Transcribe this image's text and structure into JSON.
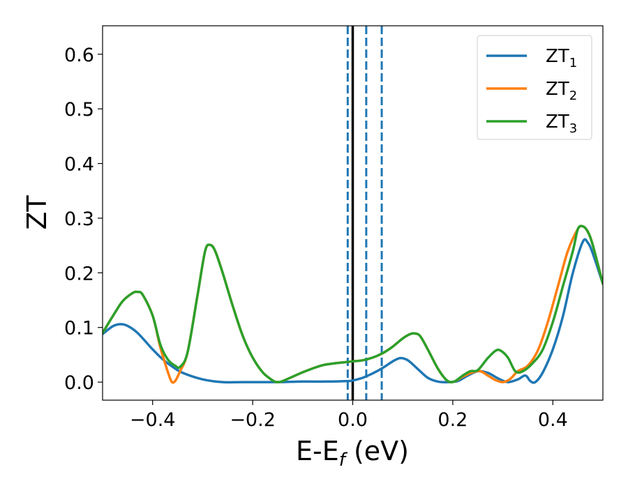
{
  "chart_data": {
    "type": "line",
    "xlabel_main": "E-E",
    "xlabel_sub": "f",
    "xlabel_unit": " (eV)",
    "ylabel": "ZT",
    "xlim": [
      -0.5,
      0.5
    ],
    "ylim": [
      -0.033,
      0.652
    ],
    "xticks": [
      -0.4,
      -0.2,
      0.0,
      0.2,
      0.4
    ],
    "xtick_labels": [
      "−0.4",
      "−0.2",
      "0.0",
      "0.2",
      "0.4"
    ],
    "yticks": [
      0.0,
      0.1,
      0.2,
      0.3,
      0.4,
      0.5,
      0.6
    ],
    "ytick_labels": [
      "0.0",
      "0.1",
      "0.2",
      "0.3",
      "0.4",
      "0.5",
      "0.6"
    ],
    "grid": false,
    "legend_position": "top-right",
    "vlines": [
      {
        "x": 0.0,
        "style": "solid",
        "color": "#000000"
      },
      {
        "x": -0.01,
        "style": "dashed",
        "color": "#1f77b4"
      },
      {
        "x": 0.027,
        "style": "dashed",
        "color": "#1f77b4"
      },
      {
        "x": 0.058,
        "style": "dashed",
        "color": "#1f77b4"
      }
    ],
    "series": [
      {
        "name": "ZT",
        "name_sub": "1",
        "color": "#1f77b4",
        "x": [
          -0.5,
          -0.48,
          -0.465,
          -0.45,
          -0.43,
          -0.4,
          -0.38,
          -0.36,
          -0.34,
          -0.3,
          -0.26,
          -0.22,
          -0.15,
          -0.1,
          -0.05,
          -0.01,
          0.0,
          0.02,
          0.04,
          0.06,
          0.08,
          0.095,
          0.11,
          0.13,
          0.15,
          0.17,
          0.19,
          0.21,
          0.23,
          0.25,
          0.27,
          0.29,
          0.31,
          0.33,
          0.345,
          0.355,
          0.365,
          0.38,
          0.4,
          0.42,
          0.44,
          0.46,
          0.47,
          0.48,
          0.5
        ],
        "y": [
          0.088,
          0.102,
          0.106,
          0.103,
          0.09,
          0.06,
          0.042,
          0.028,
          0.017,
          0.005,
          0.0,
          0.0,
          0.0,
          0.001,
          0.001,
          0.002,
          0.003,
          0.008,
          0.016,
          0.026,
          0.038,
          0.044,
          0.04,
          0.024,
          0.008,
          0.001,
          0.0,
          0.002,
          0.012,
          0.02,
          0.017,
          0.007,
          0.0,
          0.005,
          0.012,
          0.002,
          0.0,
          0.018,
          0.06,
          0.12,
          0.2,
          0.257,
          0.255,
          0.235,
          0.18
        ]
      },
      {
        "name": "ZT",
        "name_sub": "2",
        "color": "#ff7f0e",
        "x": [
          -0.5,
          -0.48,
          -0.46,
          -0.44,
          -0.43,
          -0.42,
          -0.4,
          -0.385,
          -0.37,
          -0.362,
          -0.355,
          -0.345,
          -0.33,
          -0.31,
          -0.295,
          -0.285,
          -0.275,
          -0.26,
          -0.24,
          -0.22,
          -0.2,
          -0.18,
          -0.16,
          -0.15,
          -0.14,
          -0.12,
          -0.1,
          -0.08,
          -0.06,
          -0.04,
          -0.02,
          0.0,
          0.02,
          0.04,
          0.06,
          0.08,
          0.1,
          0.115,
          0.125,
          0.135,
          0.15,
          0.17,
          0.185,
          0.195,
          0.205,
          0.22,
          0.24,
          0.255,
          0.27,
          0.285,
          0.3,
          0.315,
          0.33,
          0.35,
          0.37,
          0.39,
          0.41,
          0.43,
          0.45,
          0.46,
          0.47,
          0.48,
          0.5
        ],
        "y": [
          0.09,
          0.12,
          0.148,
          0.163,
          0.165,
          0.16,
          0.122,
          0.065,
          0.02,
          0.001,
          0.002,
          0.02,
          0.055,
          0.16,
          0.24,
          0.251,
          0.24,
          0.2,
          0.14,
          0.085,
          0.045,
          0.018,
          0.003,
          0.0,
          0.002,
          0.01,
          0.018,
          0.025,
          0.031,
          0.034,
          0.036,
          0.038,
          0.04,
          0.045,
          0.053,
          0.065,
          0.08,
          0.088,
          0.089,
          0.084,
          0.06,
          0.025,
          0.006,
          0.0,
          0.002,
          0.01,
          0.018,
          0.02,
          0.012,
          0.004,
          0.0,
          0.006,
          0.02,
          0.03,
          0.058,
          0.11,
          0.175,
          0.24,
          0.28,
          0.285,
          0.275,
          0.25,
          0.18
        ]
      },
      {
        "name": "ZT",
        "name_sub": "3",
        "color": "#2ca02c",
        "x": [
          -0.5,
          -0.48,
          -0.46,
          -0.44,
          -0.43,
          -0.42,
          -0.4,
          -0.385,
          -0.37,
          -0.355,
          -0.345,
          -0.33,
          -0.31,
          -0.295,
          -0.285,
          -0.275,
          -0.26,
          -0.24,
          -0.22,
          -0.2,
          -0.18,
          -0.16,
          -0.15,
          -0.14,
          -0.12,
          -0.1,
          -0.08,
          -0.06,
          -0.04,
          -0.02,
          0.0,
          0.02,
          0.04,
          0.06,
          0.08,
          0.1,
          0.115,
          0.125,
          0.135,
          0.15,
          0.17,
          0.185,
          0.195,
          0.205,
          0.22,
          0.235,
          0.25,
          0.27,
          0.285,
          0.295,
          0.31,
          0.325,
          0.34,
          0.36,
          0.38,
          0.4,
          0.42,
          0.44,
          0.45,
          0.46,
          0.47,
          0.48,
          0.5
        ],
        "y": [
          0.09,
          0.12,
          0.148,
          0.163,
          0.165,
          0.16,
          0.122,
          0.07,
          0.042,
          0.03,
          0.028,
          0.055,
          0.16,
          0.24,
          0.251,
          0.24,
          0.2,
          0.14,
          0.085,
          0.045,
          0.018,
          0.003,
          0.0,
          0.002,
          0.01,
          0.018,
          0.025,
          0.031,
          0.034,
          0.036,
          0.038,
          0.04,
          0.045,
          0.053,
          0.065,
          0.08,
          0.088,
          0.089,
          0.084,
          0.06,
          0.025,
          0.006,
          0.0,
          0.002,
          0.012,
          0.02,
          0.022,
          0.044,
          0.057,
          0.058,
          0.045,
          0.02,
          0.02,
          0.035,
          0.06,
          0.11,
          0.175,
          0.24,
          0.28,
          0.285,
          0.275,
          0.25,
          0.18
        ]
      }
    ]
  }
}
